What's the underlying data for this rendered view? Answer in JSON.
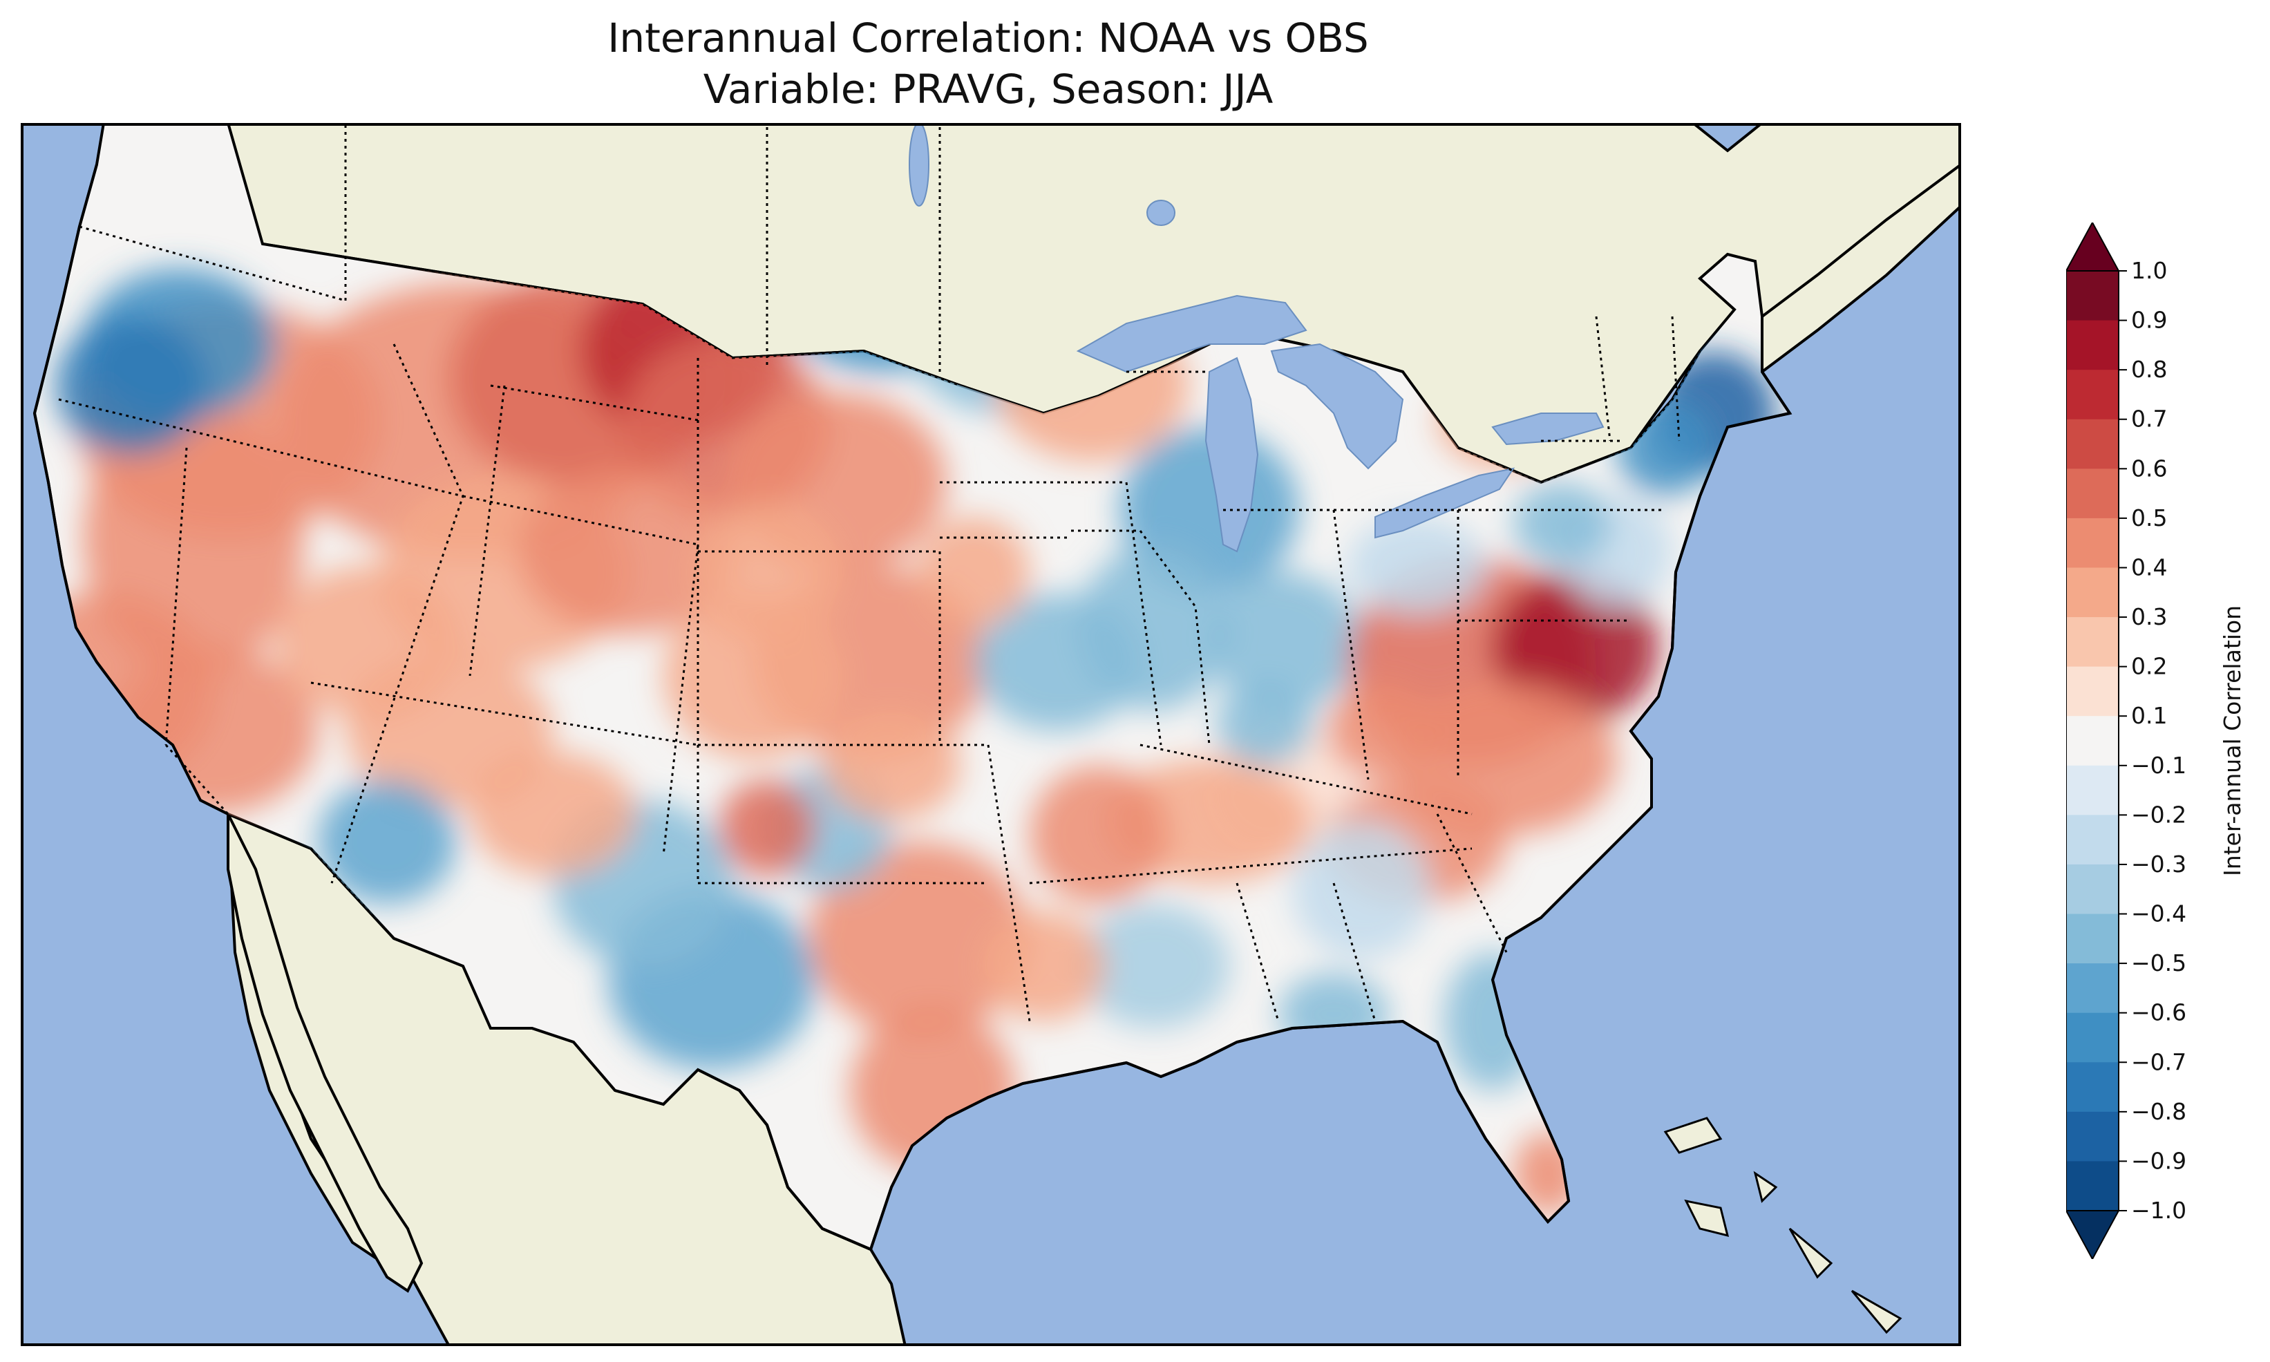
{
  "title": {
    "line1": "Interannual Correlation: NOAA vs OBS",
    "line2": "Variable: PRAVG, Season: JJA"
  },
  "colors": {
    "ocean": "#97b6e1",
    "land": "#efefdb",
    "coast": "#000000"
  },
  "colorbar": {
    "label": "Inter-annual Correlation",
    "ticks": [
      "1.0",
      "0.9",
      "0.8",
      "0.7",
      "0.6",
      "0.5",
      "0.4",
      "0.3",
      "0.2",
      "0.1",
      "−0.1",
      "−0.2",
      "−0.3",
      "−0.4",
      "−0.5",
      "−0.6",
      "−0.7",
      "−0.8",
      "−0.9",
      "−1.0"
    ],
    "levels": [
      {
        "range": "0.9 to 1.0",
        "color": "#780b23"
      },
      {
        "range": "0.8 to 0.9",
        "color": "#a51428"
      },
      {
        "range": "0.7 to 0.8",
        "color": "#bd2a32"
      },
      {
        "range": "0.6 to 0.7",
        "color": "#cd4b44"
      },
      {
        "range": "0.5 to 0.6",
        "color": "#dd6b59"
      },
      {
        "range": "0.4 to 0.5",
        "color": "#ec8c71"
      },
      {
        "range": "0.3 to 0.4",
        "color": "#f4a98a"
      },
      {
        "range": "0.2 to 0.3",
        "color": "#f9c6ad"
      },
      {
        "range": "0.1 to 0.2",
        "color": "#fbe1d3"
      },
      {
        "range": "-0.1 to 0.1",
        "color": "#f5f4f3"
      },
      {
        "range": "-0.2 to -0.1",
        "color": "#dde9f3"
      },
      {
        "range": "-0.3 to -0.2",
        "color": "#c2dbec"
      },
      {
        "range": "-0.4 to -0.3",
        "color": "#a6cce2"
      },
      {
        "range": "-0.5 to -0.4",
        "color": "#84bbd8"
      },
      {
        "range": "-0.6 to -0.5",
        "color": "#5ea4cf"
      },
      {
        "range": "-0.7 to -0.6",
        "color": "#3f8fc3"
      },
      {
        "range": "-0.8 to -0.7",
        "color": "#2b79b6"
      },
      {
        "range": "-0.9 to -0.8",
        "color": "#1c62a3"
      },
      {
        "range": "-1.0 to -0.9",
        "color": "#0e4c89"
      }
    ],
    "extend_max_color": "#67001f",
    "extend_min_color": "#053061"
  }
}
